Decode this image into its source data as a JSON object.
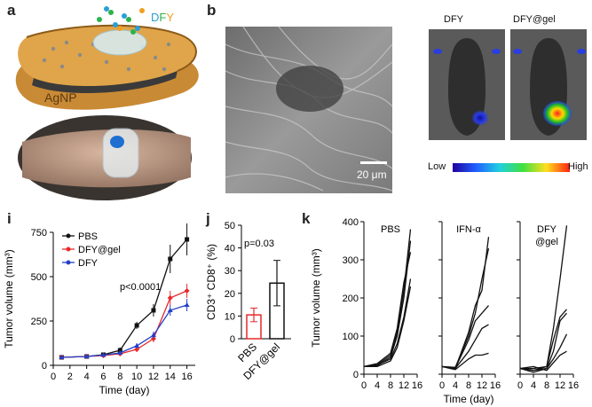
{
  "panels": {
    "a": "a",
    "b": "b",
    "i": "i",
    "j": "j",
    "k": "k"
  },
  "panel_a": {
    "label_dfy": [
      "D",
      "F",
      "Y"
    ],
    "label_agnp": "AgNP",
    "colors": {
      "D": "#2a9fd6",
      "F": "#2bb34a",
      "Y": "#f0a020",
      "pad": "#d99a3d",
      "pad_dark": "#b9781f"
    }
  },
  "panel_b": {
    "scalebar": "20 μm",
    "mouse_left_label": "DFY",
    "mouse_right_label": "DFY@gel",
    "scale_low": "Low",
    "scale_high": "High"
  },
  "chart_data": [
    {
      "type": "line",
      "panel": "i",
      "xlabel": "Time (day)",
      "ylabel": "Tumor volume (mm³)",
      "xlim": [
        0,
        17
      ],
      "ylim": [
        0,
        750
      ],
      "xticks": [
        "0",
        "2",
        "4",
        "6",
        "8",
        "10",
        "12",
        "14",
        "16"
      ],
      "yticks": [
        "0",
        "250",
        "500",
        "750"
      ],
      "annotation": "p<0.0001",
      "series": [
        {
          "name": "PBS",
          "color": "#111111",
          "x": [
            1,
            4,
            6,
            8,
            10,
            12,
            14,
            16
          ],
          "y": [
            45,
            50,
            60,
            85,
            225,
            310,
            600,
            710
          ],
          "err": [
            8,
            8,
            10,
            15,
            20,
            35,
            80,
            90
          ]
        },
        {
          "name": "DFY@gel",
          "color": "#e8282b",
          "x": [
            1,
            4,
            6,
            8,
            10,
            12,
            14,
            16
          ],
          "y": [
            45,
            50,
            55,
            65,
            90,
            150,
            380,
            420
          ],
          "err": [
            8,
            8,
            8,
            10,
            15,
            20,
            40,
            40
          ]
        },
        {
          "name": "DFY",
          "color": "#2440c8",
          "x": [
            1,
            4,
            6,
            8,
            10,
            12,
            14,
            16
          ],
          "y": [
            45,
            50,
            58,
            70,
            110,
            170,
            310,
            340
          ],
          "err": [
            8,
            8,
            8,
            10,
            15,
            20,
            30,
            35
          ]
        }
      ]
    },
    {
      "type": "bar",
      "panel": "j",
      "ylabel": "CD3⁺ CD8⁺ (%)",
      "ylim": [
        0,
        50
      ],
      "yticks": [
        "0",
        "10",
        "20",
        "30",
        "40",
        "50"
      ],
      "categories": [
        "PBS",
        "DFY@gel"
      ],
      "values": [
        10.5,
        24.5
      ],
      "err": [
        3,
        10
      ],
      "colors": [
        "#e8282b",
        "#111111"
      ],
      "annotation": "p=0.03"
    },
    {
      "type": "line",
      "panel": "k",
      "ylabel": "Tumor volume (mm³)",
      "xlabel": "Time (day)",
      "xlim": [
        0,
        16
      ],
      "ylim": [
        0,
        400
      ],
      "yticks": [
        "0",
        "100",
        "200",
        "300",
        "400"
      ],
      "xticks": [
        "0",
        "4",
        "8",
        "12",
        "16"
      ],
      "subplots": [
        {
          "name": "PBS",
          "lines": [
            [
              [
                0,
                20
              ],
              [
                4,
                25
              ],
              [
                8,
                50
              ],
              [
                10,
                110
              ],
              [
                12,
                220
              ],
              [
                14,
                380
              ]
            ],
            [
              [
                0,
                20
              ],
              [
                4,
                22
              ],
              [
                8,
                45
              ],
              [
                10,
                100
              ],
              [
                12,
                200
              ],
              [
                14,
                350
              ]
            ],
            [
              [
                0,
                20
              ],
              [
                4,
                24
              ],
              [
                8,
                40
              ],
              [
                10,
                80
              ],
              [
                12,
                150
              ],
              [
                14,
                250
              ]
            ],
            [
              [
                0,
                20
              ],
              [
                4,
                20
              ],
              [
                8,
                35
              ],
              [
                10,
                70
              ],
              [
                12,
                140
              ],
              [
                14,
                230
              ]
            ],
            [
              [
                0,
                20
              ],
              [
                4,
                28
              ],
              [
                8,
                55
              ],
              [
                10,
                120
              ],
              [
                12,
                240
              ],
              [
                14,
                320
              ]
            ]
          ]
        },
        {
          "name": "IFN-α",
          "lines": [
            [
              [
                0,
                20
              ],
              [
                4,
                15
              ],
              [
                8,
                110
              ],
              [
                10,
                180
              ],
              [
                12,
                220
              ],
              [
                14,
                360
              ]
            ],
            [
              [
                0,
                20
              ],
              [
                4,
                18
              ],
              [
                8,
                100
              ],
              [
                10,
                160
              ],
              [
                12,
                250
              ],
              [
                14,
                330
              ]
            ],
            [
              [
                0,
                20
              ],
              [
                4,
                16
              ],
              [
                8,
                90
              ],
              [
                10,
                140
              ],
              [
                12,
                160
              ],
              [
                14,
                180
              ]
            ],
            [
              [
                0,
                20
              ],
              [
                4,
                15
              ],
              [
                8,
                60
              ],
              [
                10,
                90
              ],
              [
                12,
                120
              ],
              [
                14,
                130
              ]
            ],
            [
              [
                0,
                20
              ],
              [
                4,
                12
              ],
              [
                8,
                40
              ],
              [
                10,
                50
              ],
              [
                12,
                50
              ],
              [
                14,
                55
              ]
            ]
          ]
        },
        {
          "name": "DFY\n@gel",
          "lines": [
            [
              [
                0,
                15
              ],
              [
                4,
                10
              ],
              [
                8,
                20
              ],
              [
                10,
                120
              ],
              [
                12,
                250
              ],
              [
                14,
                390
              ]
            ],
            [
              [
                0,
                15
              ],
              [
                4,
                15
              ],
              [
                8,
                20
              ],
              [
                10,
                90
              ],
              [
                12,
                150
              ],
              [
                14,
                170
              ]
            ],
            [
              [
                0,
                15
              ],
              [
                4,
                5
              ],
              [
                8,
                15
              ],
              [
                10,
                60
              ],
              [
                12,
                140
              ],
              [
                14,
                160
              ]
            ],
            [
              [
                0,
                15
              ],
              [
                4,
                10
              ],
              [
                8,
                15
              ],
              [
                10,
                40
              ],
              [
                12,
                70
              ],
              [
                14,
                105
              ]
            ],
            [
              [
                0,
                15
              ],
              [
                4,
                20
              ],
              [
                8,
                10
              ],
              [
                10,
                30
              ],
              [
                12,
                50
              ],
              [
                14,
                60
              ]
            ]
          ]
        }
      ]
    }
  ]
}
